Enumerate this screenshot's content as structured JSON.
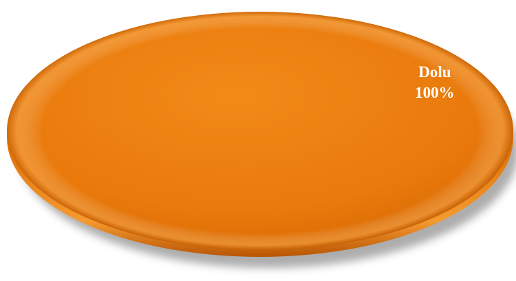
{
  "chart_data": {
    "type": "pie",
    "categories": [
      "Dolu"
    ],
    "values": [
      100
    ],
    "labels": [
      "Dolu\n100%"
    ],
    "colors": [
      "#E9790B"
    ],
    "label_color": "#FFFFFF",
    "legend": "none",
    "style": "3d"
  }
}
